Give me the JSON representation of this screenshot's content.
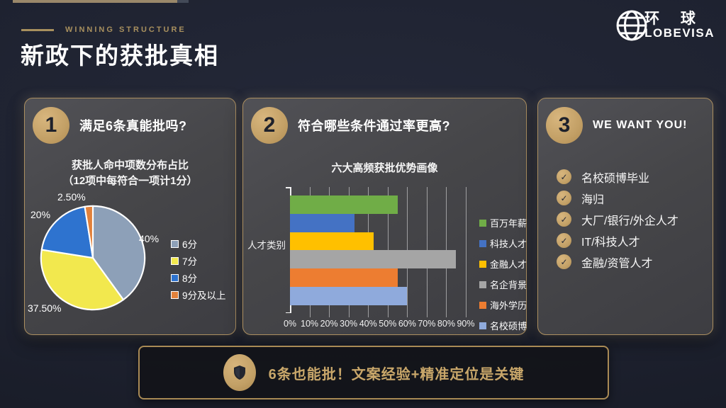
{
  "page": {
    "eyebrow": "WINNING STRUCTURE",
    "title": "新政下的获批真相"
  },
  "logo": {
    "cn": "环 球",
    "en": "LOBEVISA"
  },
  "panels": {
    "p1": {
      "number": "1",
      "question": "满足6条真能批吗?",
      "subtitle_line1": "获批人命中项数分布占比",
      "subtitle_line2": "（12项中每符合一项计1分）"
    },
    "p2": {
      "number": "2",
      "question": "符合哪些条件通过率更高?"
    },
    "p3": {
      "number": "3",
      "question": "WE WANT YOU!",
      "items": [
        "名校硕博毕业",
        "海归",
        "大厂/银行/外企人才",
        "IT/科技人才",
        "金融/资管人才"
      ]
    }
  },
  "banner": {
    "text": "6条也能批！文案经验+精准定位是关键"
  },
  "chart_data": [
    {
      "type": "pie",
      "title": "获批人命中项数分布占比",
      "subtitle": "（12项中每符合一项计1分）",
      "labels": [
        "6分",
        "7分",
        "8分",
        "9分及以上"
      ],
      "values": [
        40,
        37.5,
        20,
        2.5
      ],
      "value_labels": [
        "40%",
        "37.50%",
        "20%",
        "2.50%"
      ],
      "colors": [
        "#8da0b8",
        "#f2e84e",
        "#2e73cf",
        "#e2813b"
      ],
      "start_angle": "top",
      "direction": "clockwise",
      "legend_position": "right",
      "slice_border_color": "#ffffff"
    },
    {
      "type": "bar",
      "orientation": "horizontal",
      "title": "六大高频获批优势画像",
      "ylabel": "人才类别",
      "categories": [
        "百万年薪",
        "科技人才",
        "金融人才",
        "名企背景",
        "海外学历",
        "名校硕博"
      ],
      "values": [
        55,
        33,
        43,
        85,
        55,
        60
      ],
      "colors": [
        "#70ad47",
        "#4472c4",
        "#ffc000",
        "#a5a5a5",
        "#ed7d31",
        "#8faadc"
      ],
      "xlim": [
        0,
        90
      ],
      "xticks": [
        "0%",
        "10%",
        "20%",
        "30%",
        "40%",
        "50%",
        "60%",
        "70%",
        "80%",
        "90%"
      ],
      "grid": true,
      "legend_position": "right"
    }
  ]
}
